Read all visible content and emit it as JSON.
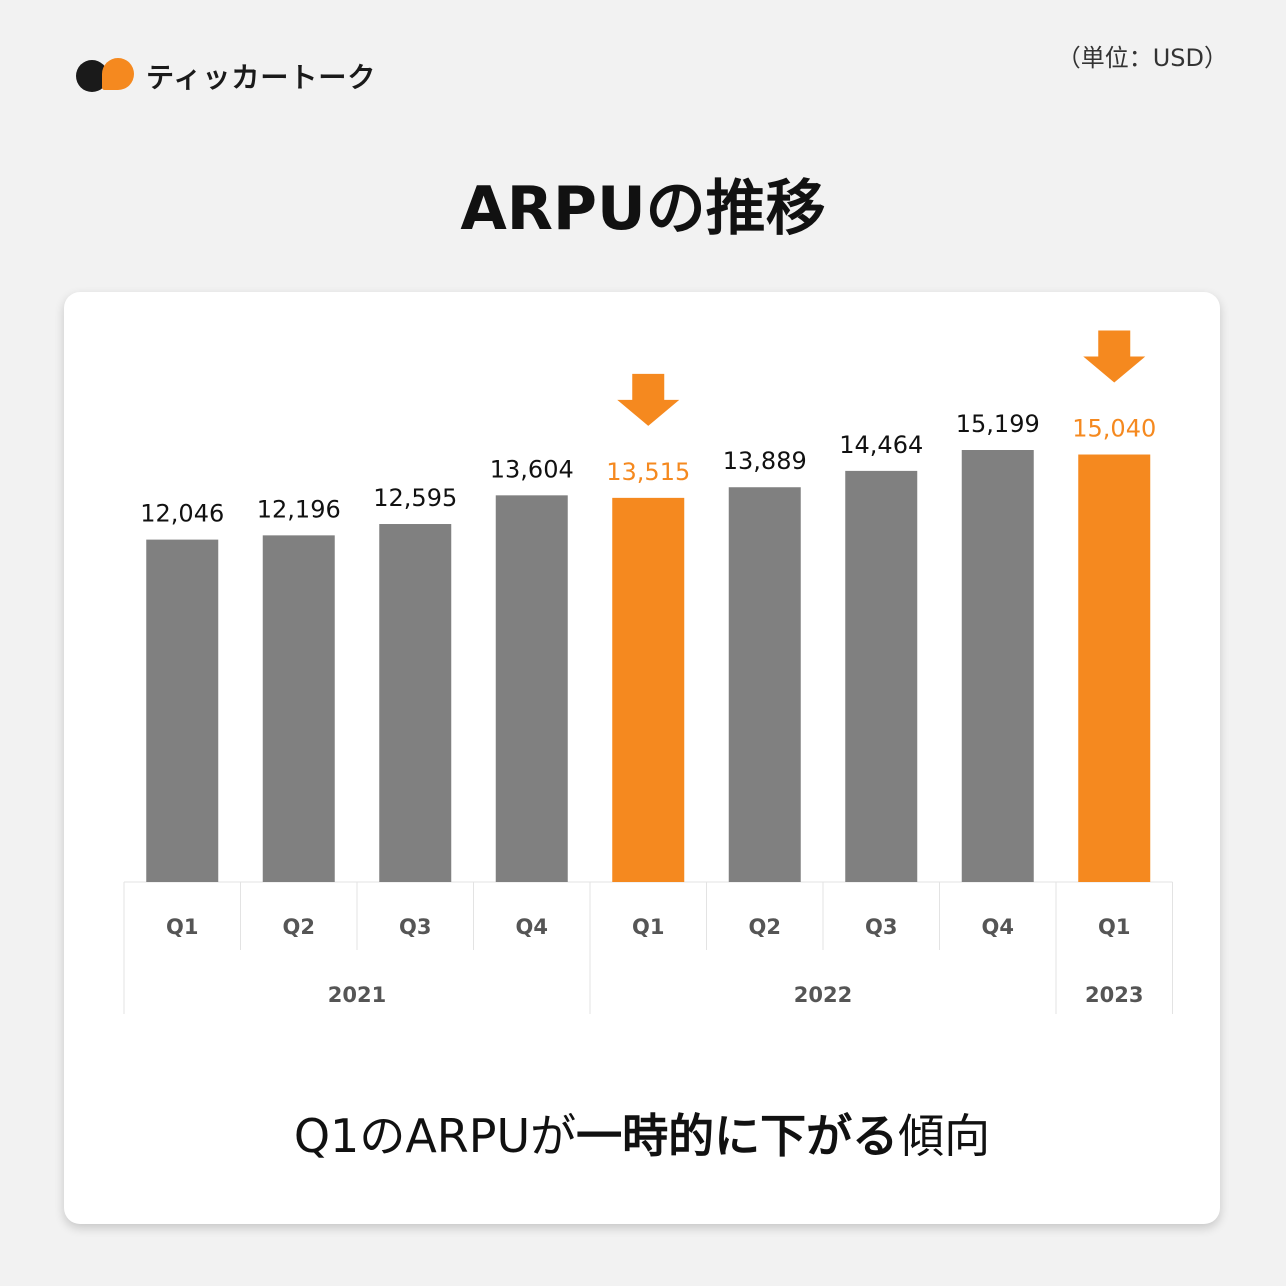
{
  "brand": {
    "name": "ティッカートーク"
  },
  "unit": "（単位：USD）",
  "title": "ARPUの推移",
  "colors": {
    "bar": "#808080",
    "highlight": "#f5891f",
    "text": "#111111",
    "axis_text": "#555555",
    "grid": "#e3e3e3"
  },
  "chart_data": {
    "type": "bar",
    "categories": [
      "Q1",
      "Q2",
      "Q3",
      "Q4",
      "Q1",
      "Q2",
      "Q3",
      "Q4",
      "Q1"
    ],
    "groups": [
      {
        "label": "2021",
        "count": 4
      },
      {
        "label": "2022",
        "count": 4
      },
      {
        "label": "2023",
        "count": 1
      }
    ],
    "values": [
      12046,
      12196,
      12595,
      13604,
      13515,
      13889,
      14464,
      15199,
      15040
    ],
    "value_labels": [
      "12,046",
      "12,196",
      "12,595",
      "13,604",
      "13,515",
      "13,889",
      "14,464",
      "15,199",
      "15,040"
    ],
    "highlight_indices": [
      4,
      8
    ],
    "arrow_indices": [
      4,
      8
    ],
    "ylim": [
      0,
      15199
    ],
    "grid": false,
    "legend": "none"
  },
  "caption": {
    "part1": "Q1のARPUが",
    "part2": "一時的に下がる",
    "part3": "傾向"
  }
}
